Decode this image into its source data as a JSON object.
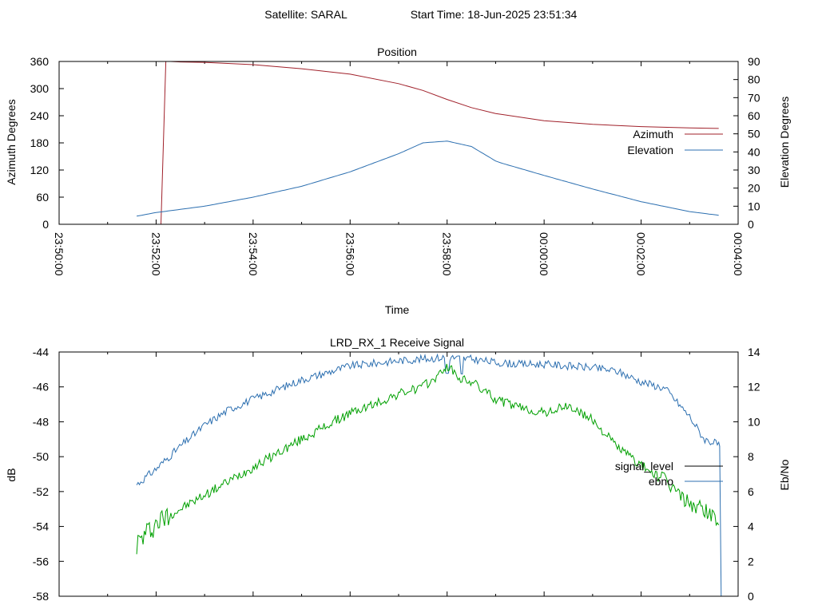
{
  "header": {
    "satellite": "Satellite: SARAL",
    "start_time": "Start Time: 18-Jun-2025 23:51:34"
  },
  "colors": {
    "azimuth": "#a0202a",
    "elevation": "#2c6fb0",
    "signal_level": "#000000",
    "ebno": "#2c6fb0",
    "green_trace": "#00a000"
  },
  "chart_data": [
    {
      "type": "line",
      "title": "Position",
      "xlabel": "Time",
      "ylabel": "Azimuth Degrees",
      "y2label": "Elevation Degrees",
      "x_ticks": [
        "23:50:00",
        "23:52:00",
        "23:54:00",
        "23:56:00",
        "23:58:00",
        "00:00:00",
        "00:02:00",
        "00:04:00"
      ],
      "x_range_minutes": [
        0,
        14
      ],
      "ylim": [
        0,
        360
      ],
      "y_ticks": [
        "0",
        "60",
        "120",
        "180",
        "240",
        "300",
        "360"
      ],
      "y2lim": [
        0,
        90
      ],
      "y2_ticks": [
        "0",
        "10",
        "20",
        "30",
        "40",
        "50",
        "60",
        "70",
        "80",
        "90"
      ],
      "legend_position": "right",
      "series": [
        {
          "name": "Azimuth",
          "axis": "y",
          "x": [
            1.6,
            2.1,
            2.2,
            2.3,
            2.5,
            3,
            4,
            5,
            6,
            7,
            7.5,
            8,
            8.5,
            9,
            10,
            11,
            12,
            13,
            13.6
          ],
          "y": [
            0,
            0,
            360,
            360,
            359,
            358,
            353,
            344,
            332,
            311,
            296,
            276,
            258,
            245,
            229,
            221,
            216,
            213,
            212
          ]
        },
        {
          "name": "Elevation",
          "axis": "y2",
          "x": [
            1.6,
            2,
            3,
            4,
            5,
            6,
            7,
            7.5,
            8,
            8.5,
            9,
            9.1,
            10,
            11,
            12,
            13,
            13.6
          ],
          "y": [
            4.5,
            6.5,
            10,
            15,
            21,
            29,
            39,
            45,
            46,
            43,
            35,
            34,
            27,
            19.5,
            12.5,
            7,
            5
          ]
        }
      ]
    },
    {
      "type": "line",
      "title": "LRD_RX_1 Receive Signal",
      "ylabel": "dB",
      "y2label": "Eb/No",
      "ylim": [
        -58,
        -44
      ],
      "y_ticks": [
        "-58",
        "-56",
        "-54",
        "-52",
        "-50",
        "-48",
        "-46",
        "-44"
      ],
      "y2lim": [
        0,
        14
      ],
      "y2_ticks": [
        "0",
        "2",
        "4",
        "6",
        "8",
        "10",
        "12",
        "14"
      ],
      "legend_position": "right",
      "series": [
        {
          "name": "signal_level",
          "axis": "y",
          "x": [],
          "y": []
        },
        {
          "name": "ebno",
          "axis": "y2",
          "x": [
            1.6,
            2,
            2.5,
            3,
            3.5,
            4,
            5,
            6,
            7,
            7.5,
            8,
            8.5,
            9,
            9.5,
            10,
            11,
            11.5,
            12,
            12.5,
            13,
            13.3,
            13.6,
            13.65
          ],
          "y": [
            6.4,
            7.3,
            8.6,
            9.8,
            10.7,
            11.3,
            12.4,
            13.2,
            13.5,
            13.6,
            13.7,
            13.6,
            13.4,
            13.3,
            13.3,
            13.1,
            12.9,
            12.3,
            11.9,
            10.3,
            9.0,
            8.7,
            0
          ]
        },
        {
          "name": "",
          "axis": "y2",
          "x": [
            1.6,
            2,
            2.5,
            3,
            3.5,
            4,
            5,
            6,
            6.5,
            7,
            7.5,
            7.8,
            8,
            8.3,
            8.5,
            9,
            9.5,
            10,
            10.5,
            11,
            11.5,
            12,
            12.5,
            13,
            13.3,
            13.6
          ],
          "y": [
            3.0,
            4.2,
            5.0,
            5.8,
            6.6,
            7.4,
            9.0,
            10.5,
            11.0,
            11.6,
            12.0,
            12.6,
            13.2,
            12.4,
            12.3,
            11.3,
            10.8,
            10.5,
            10.9,
            10.1,
            8.6,
            7.5,
            6.6,
            5.3,
            5.0,
            4.3
          ]
        }
      ]
    }
  ]
}
